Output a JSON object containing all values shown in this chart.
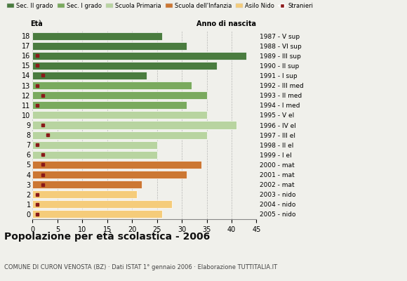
{
  "ages": [
    18,
    17,
    16,
    15,
    14,
    13,
    12,
    11,
    10,
    9,
    8,
    7,
    6,
    5,
    4,
    3,
    2,
    1,
    0
  ],
  "years": [
    "1987 - V sup",
    "1988 - VI sup",
    "1989 - III sup",
    "1990 - II sup",
    "1991 - I sup",
    "1992 - III med",
    "1993 - II med",
    "1994 - I med",
    "1995 - V el",
    "1996 - IV el",
    "1997 - III el",
    "1998 - II el",
    "1999 - I el",
    "2000 - mat",
    "2001 - mat",
    "2002 - mat",
    "2003 - nido",
    "2004 - nido",
    "2005 - nido"
  ],
  "values": [
    26,
    31,
    43,
    37,
    23,
    32,
    35,
    31,
    35,
    41,
    35,
    25,
    25,
    34,
    31,
    22,
    21,
    28,
    26
  ],
  "stranieri": [
    0,
    0,
    1,
    1,
    2,
    1,
    2,
    1,
    0,
    2,
    3,
    1,
    2,
    2,
    2,
    2,
    1,
    1,
    1
  ],
  "categories": {
    "sec_II": [
      18,
      17,
      16,
      15,
      14
    ],
    "sec_I": [
      13,
      12,
      11
    ],
    "primaria": [
      10,
      9,
      8,
      7,
      6
    ],
    "infanzia": [
      5,
      4,
      3
    ],
    "nido": [
      2,
      1,
      0
    ]
  },
  "colors": {
    "sec_II": "#4a7c3f",
    "sec_I": "#7aaa5e",
    "primaria": "#b8d4a0",
    "infanzia": "#cc7733",
    "nido": "#f5cc7a",
    "stranieri": "#8b1a1a",
    "background": "#f0f0eb"
  },
  "legend_labels": [
    "Sec. II grado",
    "Sec. I grado",
    "Scuola Primaria",
    "Scuola dell'Infanzia",
    "Asilo Nido",
    "Stranieri"
  ],
  "title": "Popolazione per età scolastica - 2006",
  "subtitle": "COMUNE DI CURON VENOSTA (BZ) · Dati ISTAT 1° gennaio 2006 · Elaborazione TUTTITALIA.IT",
  "xlabel_left": "Età",
  "xlabel_right": "Anno di nascita",
  "xlim": [
    0,
    45
  ],
  "xticks": [
    0,
    5,
    10,
    15,
    20,
    25,
    30,
    35,
    40,
    45
  ]
}
